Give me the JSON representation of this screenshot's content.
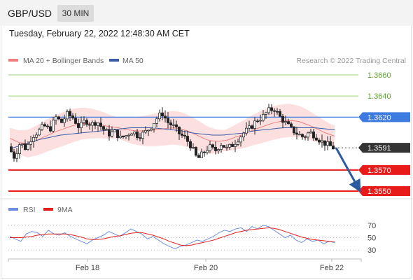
{
  "header": {
    "pair": "GBP/USD",
    "timeframe": "30 MIN"
  },
  "timestamp": "Tuesday, February 22, 2022 12:48:30 AM CET",
  "legend": {
    "ma20": "MA 20 + Bollinger Bands",
    "ma50": "MA 50"
  },
  "credit": "Research © 2022 Trading Central",
  "colors": {
    "resistance": "#9bd079",
    "pivot": "#3d7be0",
    "support": "#e81b1b",
    "ma20": "#f08080",
    "ma50": "#3a5ba8",
    "rsi": "#6f8fe0",
    "rsi_ma": "#e02020",
    "arrow": "#2a5ba0"
  },
  "chart_data": {
    "type": "candlestick",
    "x_ticks": [
      "Feb 18",
      "Feb 20",
      "Feb 22"
    ],
    "levels": [
      {
        "label": "1.3660",
        "kind": "resistance"
      },
      {
        "label": "1.3640",
        "kind": "resistance"
      },
      {
        "label": "1.3620",
        "kind": "pivot"
      },
      {
        "label": "1.3591",
        "kind": "last"
      },
      {
        "label": "1.3570",
        "kind": "support"
      },
      {
        "label": "1.3550",
        "kind": "support"
      }
    ],
    "ylim": [
      1.355,
      1.366
    ],
    "forecast": {
      "from": 1.3591,
      "to": 1.355
    },
    "close_path": [
      1.3592,
      1.3582,
      1.3596,
      1.359,
      1.3602,
      1.3606,
      1.3612,
      1.3608,
      1.362,
      1.3615,
      1.3623,
      1.3619,
      1.361,
      1.3617,
      1.3613,
      1.3616,
      1.3609,
      1.3604,
      1.3606,
      1.36,
      1.3603,
      1.3607,
      1.3602,
      1.3605,
      1.361,
      1.3618,
      1.3624,
      1.3615,
      1.3611,
      1.3604,
      1.36,
      1.3592,
      1.358,
      1.3586,
      1.3592,
      1.3588,
      1.3595,
      1.359,
      1.3594,
      1.36,
      1.3606,
      1.361,
      1.3617,
      1.362,
      1.3626,
      1.3628,
      1.362,
      1.3614,
      1.3608,
      1.3604,
      1.3601,
      1.3606,
      1.3602,
      1.3597,
      1.3594,
      1.3591
    ],
    "ma20_path": [
      1.36,
      1.3596,
      1.3595,
      1.3598,
      1.3602,
      1.3606,
      1.3609,
      1.3612,
      1.3614,
      1.3614,
      1.3613,
      1.3611,
      1.361,
      1.3608,
      1.3607,
      1.3607,
      1.3608,
      1.3609,
      1.361,
      1.3609,
      1.3606,
      1.3602,
      1.3598,
      1.3597,
      1.3598,
      1.3601,
      1.3604,
      1.3608,
      1.3611,
      1.3614,
      1.3616,
      1.3617,
      1.3616,
      1.3613,
      1.3609,
      1.3605,
      1.3602
    ],
    "ma50_path": [
      1.359,
      1.3593,
      1.3596,
      1.3599,
      1.3601,
      1.3603,
      1.3604,
      1.3605,
      1.3606,
      1.3607,
      1.3608,
      1.3609,
      1.361,
      1.361,
      1.361,
      1.3609,
      1.3608,
      1.3607,
      1.3605,
      1.3604,
      1.3603,
      1.3603,
      1.3604,
      1.3605,
      1.3607,
      1.3608,
      1.3609,
      1.361,
      1.361,
      1.361,
      1.361,
      1.3609,
      1.3608
    ],
    "rsi": {
      "legend": [
        "RSI",
        "9MA"
      ],
      "ticks": [
        70,
        50,
        30
      ],
      "ylim": [
        20,
        80
      ],
      "values": [
        52,
        48,
        44,
        56,
        60,
        58,
        52,
        62,
        56,
        54,
        58,
        52,
        48,
        44,
        40,
        46,
        50,
        54,
        60,
        56,
        52,
        58,
        64,
        60,
        56,
        48,
        52,
        46,
        40,
        36,
        32,
        36,
        38,
        42,
        46,
        44,
        48,
        52,
        58,
        62,
        60,
        64,
        66,
        60,
        68,
        64,
        70,
        68,
        62,
        56,
        50,
        54,
        46,
        42,
        48,
        44,
        46,
        40,
        44,
        42
      ],
      "ma_values": [
        50,
        50,
        50,
        51,
        52,
        54,
        55,
        56,
        56,
        56,
        56,
        55,
        53,
        51,
        48,
        47,
        47,
        48,
        50,
        52,
        53,
        55,
        57,
        58,
        58,
        56,
        54,
        51,
        48,
        44,
        41,
        38,
        37,
        38,
        40,
        42,
        44,
        46,
        49,
        52,
        55,
        58,
        60,
        62,
        63,
        64,
        65,
        66,
        65,
        63,
        60,
        57,
        54,
        51,
        49,
        47,
        46,
        45,
        44,
        43
      ]
    }
  }
}
